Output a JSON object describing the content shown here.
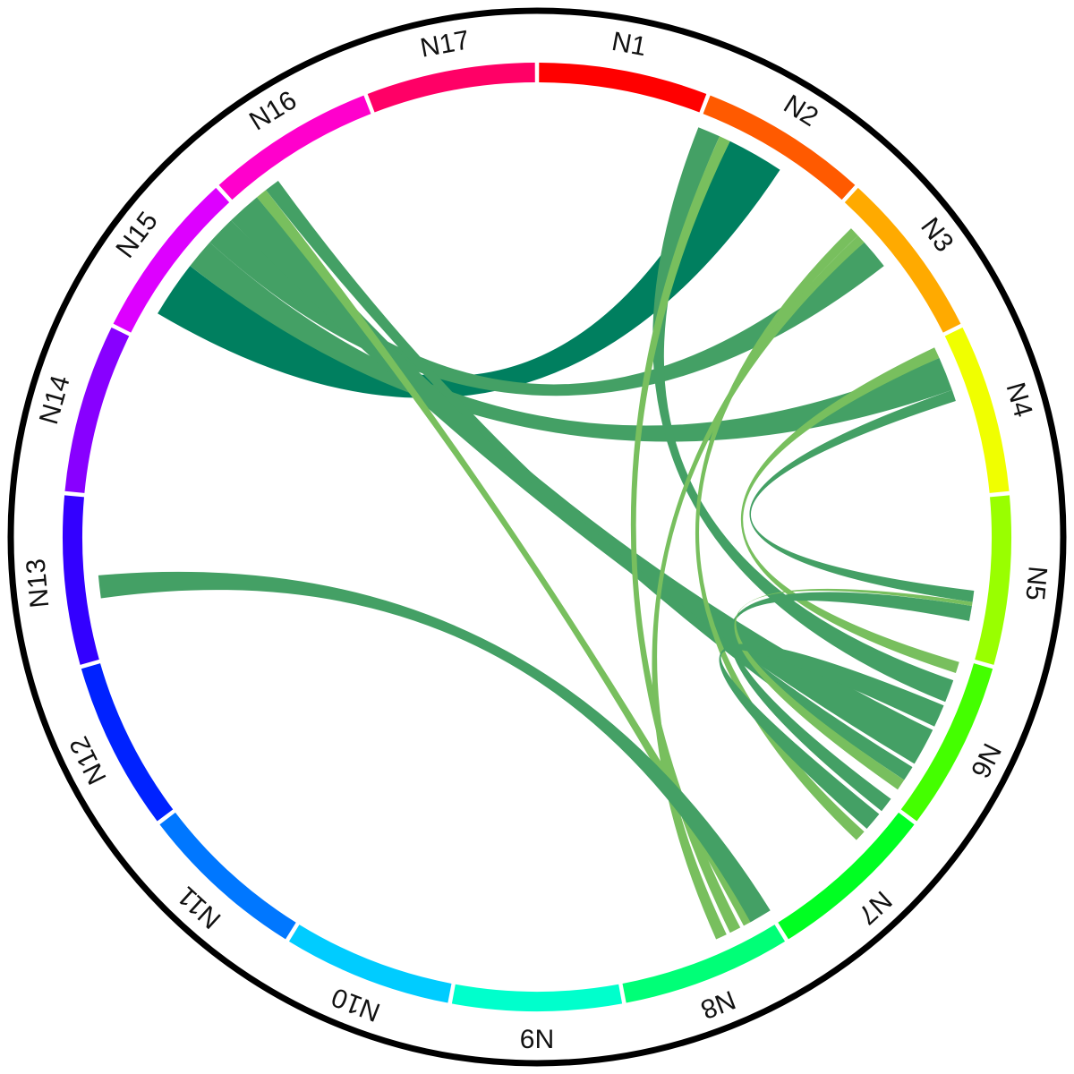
{
  "chart_data": {
    "type": "chord",
    "title": "",
    "center": [
      600,
      600
    ],
    "outer_ring": {
      "radius": 588,
      "stroke": "#000000",
      "stroke_width": 7
    },
    "segment_band": {
      "inner_radius": 508,
      "outer_radius": 530,
      "gap_color": "#ffffff"
    },
    "label_radius": 560,
    "chord_radius": 492,
    "nodes": [
      {
        "id": "N1",
        "label": "N1",
        "color": "#ff0000"
      },
      {
        "id": "N2",
        "label": "N2",
        "color": "#ff5a00"
      },
      {
        "id": "N3",
        "label": "N3",
        "color": "#ffaa00"
      },
      {
        "id": "N4",
        "label": "N4",
        "color": "#f0ff00"
      },
      {
        "id": "N5",
        "label": "N5",
        "color": "#99ff00"
      },
      {
        "id": "N6",
        "label": "N6",
        "color": "#44ff00"
      },
      {
        "id": "N7",
        "label": "N7",
        "color": "#00ff22"
      },
      {
        "id": "N8",
        "label": "N8",
        "color": "#00ff77"
      },
      {
        "id": "N9",
        "label": "N9",
        "color": "#00ffcc"
      },
      {
        "id": "N10",
        "label": "N10",
        "color": "#00ccff"
      },
      {
        "id": "N11",
        "label": "N11",
        "color": "#0077ff"
      },
      {
        "id": "N12",
        "label": "N12",
        "color": "#0022ff"
      },
      {
        "id": "N13",
        "label": "N13",
        "color": "#3300ff"
      },
      {
        "id": "N14",
        "label": "N14",
        "color": "#8800ff"
      },
      {
        "id": "N15",
        "label": "N15",
        "color": "#dd00ff"
      },
      {
        "id": "N16",
        "label": "N16",
        "color": "#ff00cc"
      },
      {
        "id": "N17",
        "label": "N17",
        "color": "#ff0066"
      }
    ],
    "chord_colors": {
      "dark": "#007f5f",
      "mid": "#44a065",
      "light": "#78bf5e"
    },
    "chords": [
      {
        "source": "N15",
        "source_angle": [
          300.5,
          308.0
        ],
        "target": "N2",
        "target_angle": [
          26.0,
          33.5
        ],
        "color": "dark"
      },
      {
        "source": "N15",
        "source_angle": [
          308.0,
          312.0
        ],
        "target": "N4",
        "target_angle": [
          66.0,
          70.5
        ],
        "color": "mid"
      },
      {
        "source": "N15",
        "source_angle": [
          312.0,
          316.0
        ],
        "target": "N3",
        "target_angle": [
          48.0,
          52.0
        ],
        "color": "mid"
      },
      {
        "source": "N15",
        "source_angle": [
          316.0,
          320.5
        ],
        "target": "N6",
        "target_angle": [
          116.0,
          121.0
        ],
        "color": "mid"
      },
      {
        "source": "N15",
        "source_angle": [
          320.5,
          322.0
        ],
        "target": "N8",
        "target_angle": [
          150.5,
          152.0
        ],
        "color": "light"
      },
      {
        "source": "N15",
        "source_angle": [
          322.0,
          324.0
        ],
        "target": "N6",
        "target_angle": [
          121.5,
          123.5
        ],
        "color": "mid"
      },
      {
        "source": "N2",
        "source_angle": [
          21.5,
          24.5
        ],
        "target": "N6",
        "target_angle": [
          109.0,
          112.0
        ],
        "color": "mid"
      },
      {
        "source": "N2",
        "source_angle": [
          24.5,
          26.0
        ],
        "target": "N8",
        "target_angle": [
          152.5,
          154.0
        ],
        "color": "light"
      },
      {
        "source": "N3",
        "source_angle": [
          45.5,
          46.8
        ],
        "target": "N7",
        "target_angle": [
          132.0,
          133.5
        ],
        "color": "light"
      },
      {
        "source": "N3",
        "source_angle": [
          46.8,
          48.0
        ],
        "target": "N8",
        "target_angle": [
          154.5,
          156.0
        ],
        "color": "light"
      },
      {
        "source": "N4",
        "source_angle": [
          64.5,
          66.0
        ],
        "target": "N6",
        "target_angle": [
          106.5,
          108.0
        ],
        "color": "light"
      },
      {
        "source": "N4",
        "source_angle": [
          70.5,
          72.0
        ],
        "target": "N5",
        "target_angle": [
          97.0,
          98.5
        ],
        "color": "mid"
      },
      {
        "source": "N5",
        "source_angle": [
          99.0,
          101.0
        ],
        "target": "N7",
        "target_angle": [
          126.5,
          128.5
        ],
        "color": "mid"
      },
      {
        "source": "N6",
        "source_angle": [
          123.5,
          125.0
        ],
        "target": "N5",
        "target_angle": [
          98.5,
          99.0
        ],
        "color": "light"
      },
      {
        "source": "N13",
        "source_angle": [
          262.0,
          265.0
        ],
        "target": "N8",
        "target_angle": [
          148.0,
          151.0
        ],
        "color": "mid"
      },
      {
        "source": "N7",
        "source_angle": [
          129.0,
          131.5
        ],
        "target": "N6",
        "target_angle": [
          112.5,
          115.5
        ],
        "color": "mid"
      }
    ]
  }
}
